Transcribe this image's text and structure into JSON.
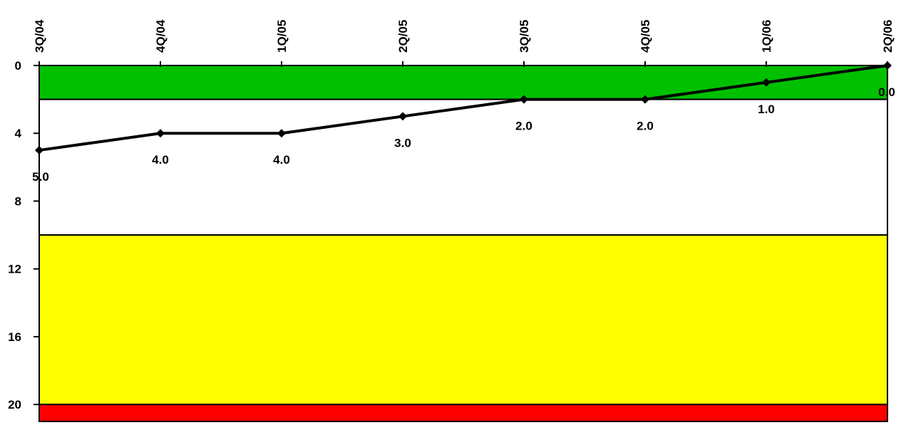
{
  "chart_data": {
    "type": "line",
    "x_position": "top",
    "y_inverted": true,
    "ylim": [
      0,
      21
    ],
    "grid": false,
    "categories": [
      "3Q/04",
      "4Q/04",
      "1Q/05",
      "2Q/05",
      "3Q/05",
      "4Q/05",
      "1Q/06",
      "2Q/06"
    ],
    "y_ticks": [
      0,
      4,
      8,
      12,
      16,
      20
    ],
    "y_tick_labels": [
      "0",
      "4",
      "8",
      "12",
      "16",
      "20"
    ],
    "series": [
      {
        "values": [
          5.0,
          4.0,
          4.0,
          3.0,
          2.0,
          2.0,
          1.0,
          0.0
        ],
        "labels": [
          "5.0",
          "4.0",
          "4.0",
          "3.0",
          "2.0",
          "2.0",
          "1.0",
          "0.0"
        ],
        "color": "#000000"
      }
    ],
    "bands": [
      {
        "from": 0,
        "to": 2,
        "color": "#00c000"
      },
      {
        "from": 2,
        "to": 10,
        "color": "#ffffff"
      },
      {
        "from": 10,
        "to": 20,
        "color": "#ffff00"
      },
      {
        "from": 20,
        "to": 21,
        "color": "#ff0000"
      }
    ]
  }
}
